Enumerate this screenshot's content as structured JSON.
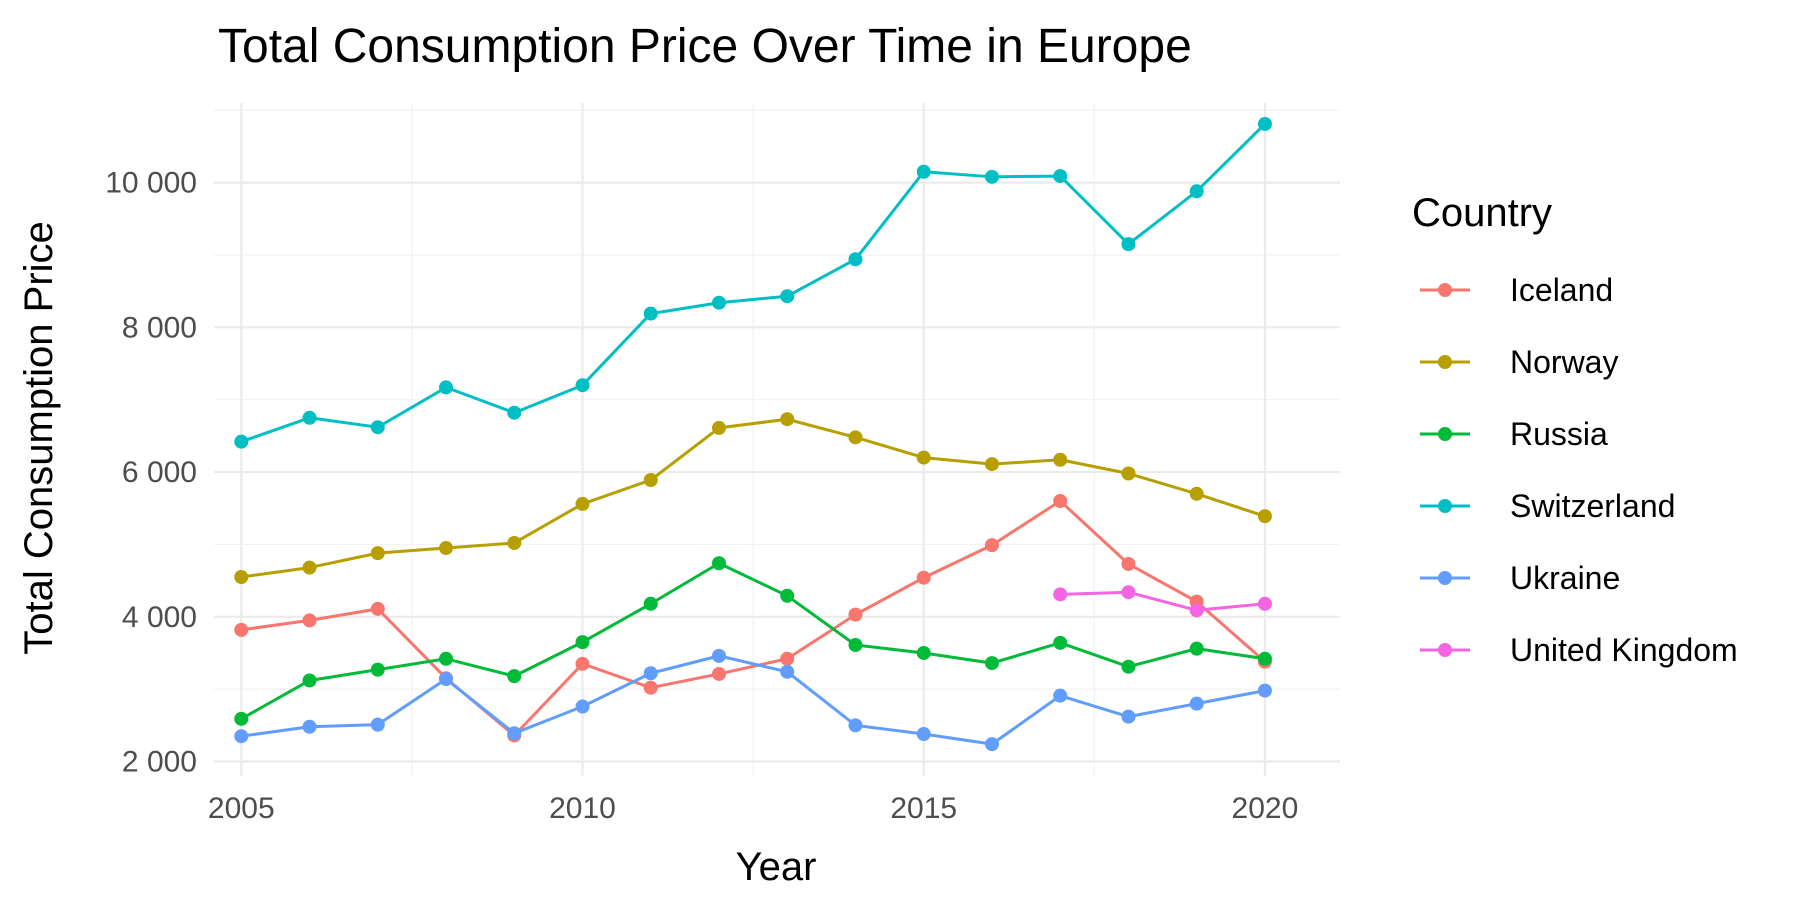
{
  "chart_data": {
    "type": "line",
    "title": "Total Consumption Price Over Time in Europe",
    "xlabel": "Year",
    "ylabel": "Total Consumption Price",
    "legend_title": "Country",
    "legend_position": "right",
    "grid": true,
    "xlim": [
      2004.6,
      2021.1
    ],
    "ylim": [
      1800,
      11100
    ],
    "x_ticks": [
      2005,
      2010,
      2015,
      2020
    ],
    "x_tick_labels": [
      "2005",
      "2010",
      "2015",
      "2020"
    ],
    "y_ticks": [
      2000,
      4000,
      6000,
      8000,
      10000
    ],
    "y_tick_labels": [
      "2 000",
      "4 000",
      "6 000",
      "8 000",
      "10 000"
    ],
    "series": [
      {
        "name": "Iceland",
        "color": "#F8766D",
        "x": [
          2005,
          2006,
          2007,
          2008,
          2009,
          2010,
          2011,
          2012,
          2013,
          2014,
          2015,
          2016,
          2017,
          2018,
          2019,
          2020
        ],
        "y": [
          3820,
          3950,
          4110,
          3150,
          2360,
          3350,
          3020,
          3210,
          3420,
          4030,
          4540,
          4990,
          5600,
          4730,
          4210,
          3380
        ]
      },
      {
        "name": "Norway",
        "color": "#B79F00",
        "x": [
          2005,
          2006,
          2007,
          2008,
          2009,
          2010,
          2011,
          2012,
          2013,
          2014,
          2015,
          2016,
          2017,
          2018,
          2019,
          2020
        ],
        "y": [
          4550,
          4680,
          4880,
          4950,
          5020,
          5560,
          5890,
          6610,
          6730,
          6480,
          6200,
          6110,
          6170,
          5980,
          5700,
          5390
        ]
      },
      {
        "name": "Russia",
        "color": "#00BA38",
        "x": [
          2005,
          2006,
          2007,
          2008,
          2009,
          2010,
          2011,
          2012,
          2013,
          2014,
          2015,
          2016,
          2017,
          2018,
          2019,
          2020
        ],
        "y": [
          2590,
          3120,
          3270,
          3420,
          3180,
          3650,
          4180,
          4740,
          4290,
          3610,
          3500,
          3360,
          3640,
          3310,
          3560,
          3420
        ]
      },
      {
        "name": "Switzerland",
        "color": "#00BFC4",
        "x": [
          2005,
          2006,
          2007,
          2008,
          2009,
          2010,
          2011,
          2012,
          2013,
          2014,
          2015,
          2016,
          2017,
          2018,
          2019,
          2020
        ],
        "y": [
          6420,
          6750,
          6620,
          7170,
          6820,
          7200,
          8190,
          8340,
          8430,
          8940,
          10150,
          10080,
          10090,
          9150,
          9880,
          10810
        ]
      },
      {
        "name": "Ukraine",
        "color": "#619CFF",
        "x": [
          2005,
          2006,
          2007,
          2008,
          2009,
          2010,
          2011,
          2012,
          2013,
          2014,
          2015,
          2016,
          2017,
          2018,
          2019,
          2020
        ],
        "y": [
          2350,
          2480,
          2510,
          3140,
          2390,
          2760,
          3220,
          3460,
          3240,
          2500,
          2380,
          2240,
          2910,
          2620,
          2800,
          2980
        ]
      },
      {
        "name": "United Kingdom",
        "color": "#F564E3",
        "x": [
          2017,
          2018,
          2019,
          2020
        ],
        "y": [
          4310,
          4340,
          4090,
          4180
        ]
      }
    ]
  }
}
